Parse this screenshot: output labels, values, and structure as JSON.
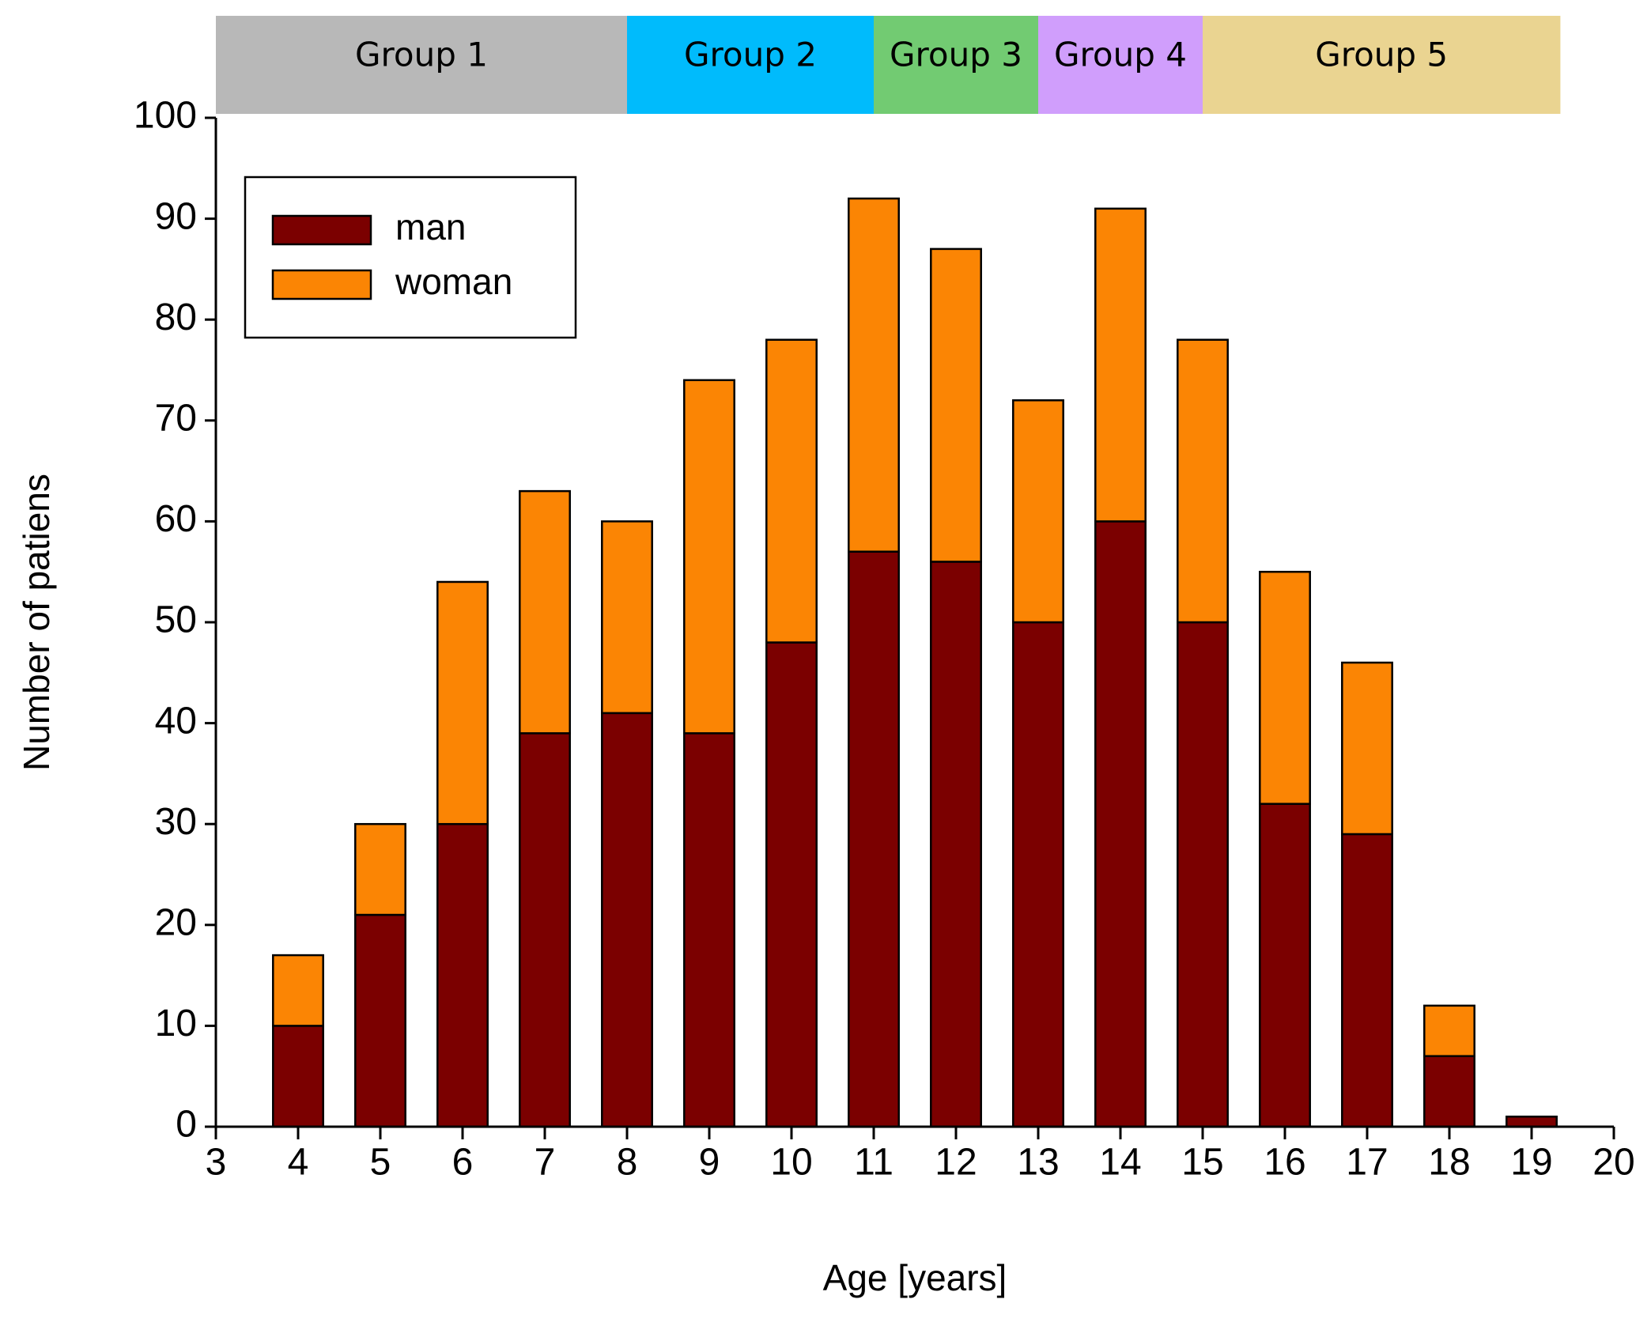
{
  "chart_data": {
    "type": "bar",
    "stacked": true,
    "x_label": "Age [years]",
    "y_label": "Number of patiens",
    "x": [
      4,
      5,
      6,
      7,
      8,
      9,
      10,
      11,
      12,
      13,
      14,
      15,
      16,
      17,
      18,
      19
    ],
    "series": [
      {
        "name": "man",
        "color": "#7b0000",
        "values": [
          10,
          21,
          30,
          39,
          41,
          39,
          48,
          57,
          56,
          50,
          60,
          50,
          32,
          29,
          7,
          1
        ]
      },
      {
        "name": "woman",
        "color": "#fb8504",
        "values": [
          7,
          9,
          24,
          24,
          19,
          35,
          30,
          35,
          31,
          22,
          31,
          28,
          23,
          17,
          5,
          0
        ]
      }
    ],
    "xlim": [
      3,
      20
    ],
    "xticks": [
      3,
      4,
      5,
      6,
      7,
      8,
      9,
      10,
      11,
      12,
      13,
      14,
      15,
      16,
      17,
      18,
      19,
      20
    ],
    "ylim": [
      0,
      100
    ],
    "yticks": [
      0,
      10,
      20,
      30,
      40,
      50,
      60,
      70,
      80,
      90,
      100
    ],
    "legend": "upper-left",
    "groups": [
      {
        "label": "Group 1",
        "start": 3,
        "end": 8,
        "color": "#b8b8b8"
      },
      {
        "label": "Group 2",
        "start": 8,
        "end": 11,
        "color": "#00bbfc"
      },
      {
        "label": "Group 3",
        "start": 11,
        "end": 13,
        "color": "#72cb72"
      },
      {
        "label": "Group 4",
        "start": 13,
        "end": 15,
        "color": "#d09efc"
      },
      {
        "label": "Group 5",
        "start": 15,
        "end": 19.35,
        "color": "#ead491"
      }
    ]
  }
}
